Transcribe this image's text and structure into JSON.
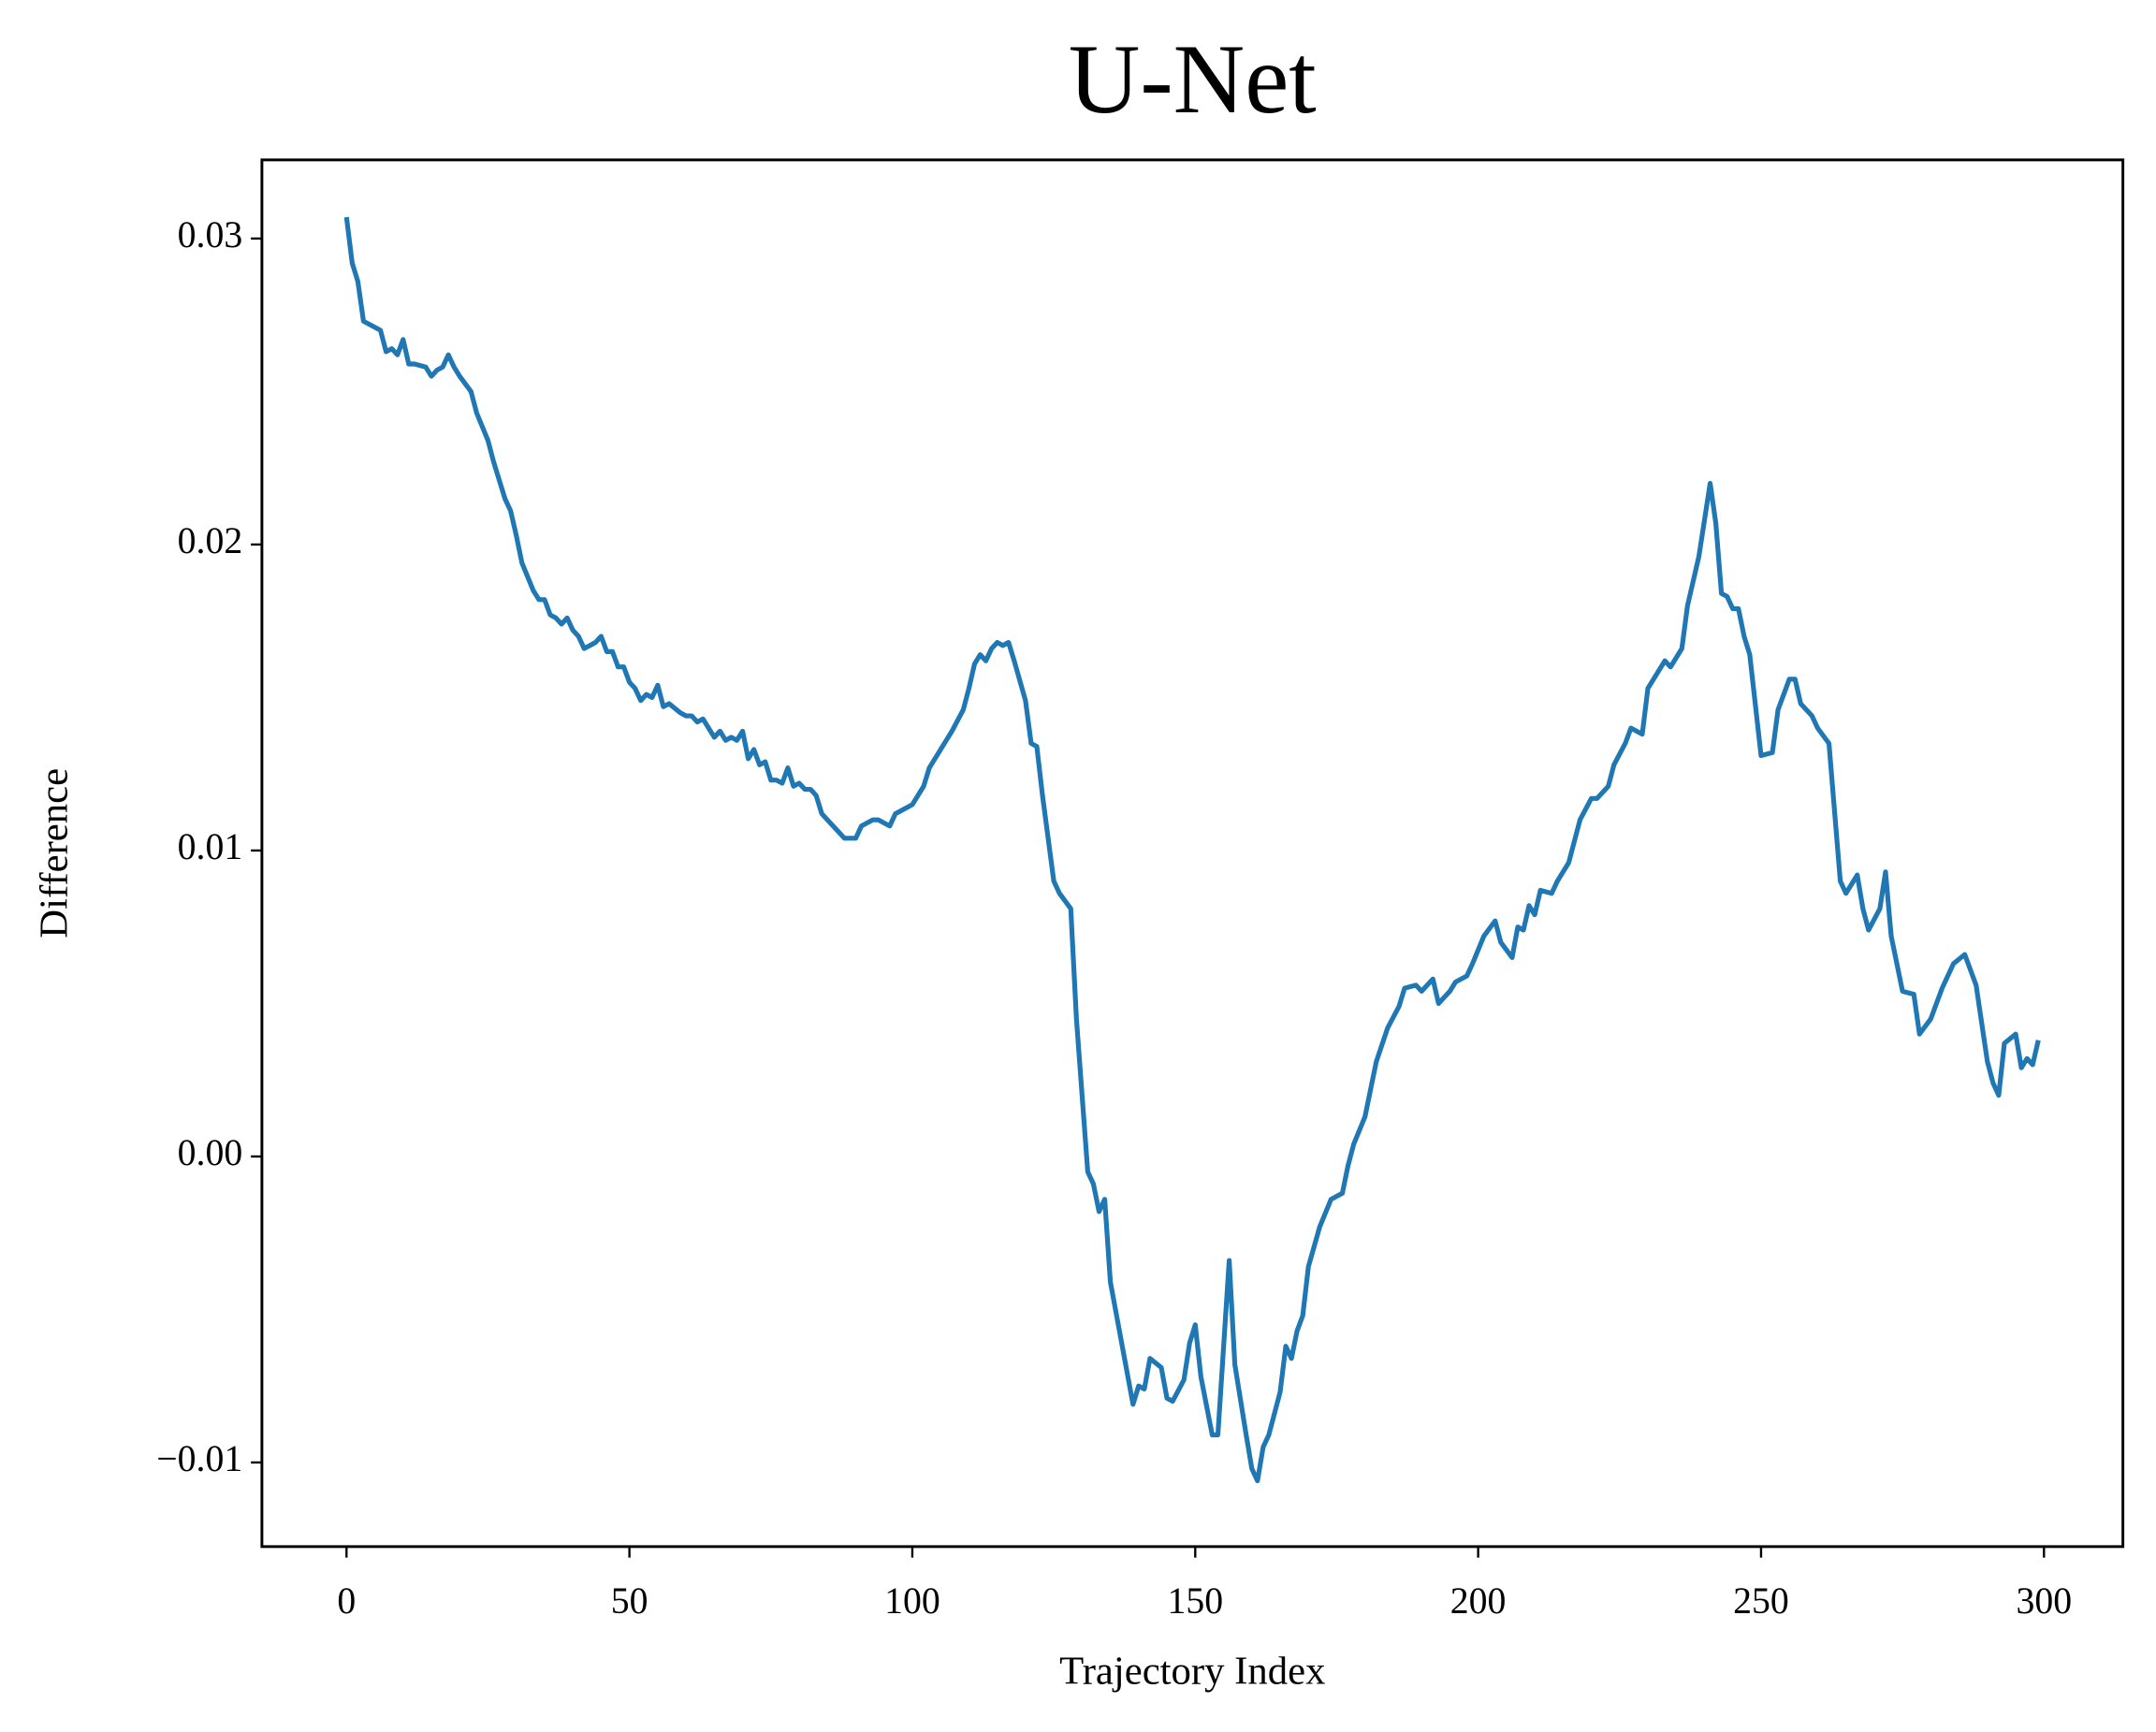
{
  "chart_data": {
    "type": "line",
    "title": "U-Net",
    "x_label": "Trajectory Index",
    "y_label": "Difference",
    "x": [
      0,
      1,
      2,
      3,
      4,
      6,
      7,
      8,
      9,
      10,
      11,
      12,
      14,
      15,
      16,
      17,
      18,
      19,
      20,
      22,
      23,
      25,
      26,
      28,
      29,
      30,
      31,
      33,
      34,
      35,
      36,
      37,
      38,
      39,
      40,
      41,
      42,
      44,
      45,
      46,
      47,
      48,
      49,
      50,
      51,
      52,
      53,
      54,
      55,
      56,
      57,
      59,
      60,
      61,
      62,
      63,
      64,
      65,
      66,
      67,
      68,
      69,
      70,
      71,
      72,
      73,
      74,
      75,
      76,
      77,
      78,
      79,
      80,
      81,
      82,
      83,
      84,
      85,
      86,
      87,
      88,
      90,
      91,
      93,
      94,
      96,
      97,
      98,
      100,
      101,
      102,
      103,
      104,
      105,
      106,
      107,
      109,
      110,
      111,
      112,
      113,
      114,
      115,
      116,
      117,
      118,
      120,
      121,
      122,
      123,
      125,
      126,
      128,
      129,
      131,
      132,
      133,
      134,
      135,
      137,
      139,
      140,
      141,
      142,
      144,
      145,
      146,
      148,
      149,
      150,
      151,
      153,
      154,
      156,
      157,
      159,
      160,
      161,
      162,
      163,
      165,
      166,
      167,
      168,
      169,
      170,
      172,
      174,
      176,
      177,
      178,
      180,
      181,
      182,
      184,
      186,
      187,
      189,
      190,
      192,
      193,
      195,
      196,
      198,
      199,
      201,
      203,
      204,
      206,
      207,
      208,
      209,
      210,
      211,
      213,
      214,
      216,
      218,
      220,
      221,
      223,
      224,
      226,
      227,
      229,
      230,
      232,
      233,
      234,
      236,
      237,
      239,
      240,
      241,
      242,
      243,
      244,
      245,
      246,
      247,
      248,
      250,
      252,
      253,
      255,
      256,
      257,
      259,
      260,
      262,
      264,
      265,
      267,
      268,
      269,
      271,
      272,
      273,
      275,
      277,
      278,
      280,
      282,
      284,
      286,
      288,
      290,
      291,
      292,
      293,
      295,
      296,
      297,
      298,
      299
    ],
    "series": [
      {
        "name": "U-Net",
        "color": "#1f77b4",
        "values": [
          0.0307,
          0.0292,
          0.0286,
          0.0273,
          0.0272,
          0.027,
          0.0263,
          0.0264,
          0.0262,
          0.0267,
          0.0259,
          0.0259,
          0.0258,
          0.0255,
          0.0257,
          0.0258,
          0.0262,
          0.0258,
          0.0255,
          0.025,
          0.0243,
          0.0234,
          0.0227,
          0.0215,
          0.0211,
          0.0203,
          0.0194,
          0.0185,
          0.0182,
          0.0182,
          0.0177,
          0.0176,
          0.0174,
          0.0176,
          0.0172,
          0.017,
          0.0166,
          0.0168,
          0.017,
          0.0165,
          0.0165,
          0.016,
          0.016,
          0.0155,
          0.0153,
          0.0149,
          0.0151,
          0.015,
          0.0154,
          0.0147,
          0.0148,
          0.0145,
          0.0144,
          0.0144,
          0.0142,
          0.0143,
          0.014,
          0.0137,
          0.0139,
          0.0136,
          0.0137,
          0.0136,
          0.0139,
          0.013,
          0.0133,
          0.0128,
          0.0129,
          0.0123,
          0.0123,
          0.0122,
          0.0127,
          0.0121,
          0.0122,
          0.012,
          0.012,
          0.0118,
          0.0112,
          0.011,
          0.0108,
          0.0106,
          0.0104,
          0.0104,
          0.0108,
          0.011,
          0.011,
          0.0108,
          0.0112,
          0.0113,
          0.0115,
          0.0118,
          0.0121,
          0.0127,
          0.013,
          0.0133,
          0.0136,
          0.0139,
          0.0146,
          0.0153,
          0.0161,
          0.0164,
          0.0162,
          0.0166,
          0.0168,
          0.0167,
          0.0168,
          0.0162,
          0.0149,
          0.0135,
          0.0134,
          0.0118,
          0.009,
          0.0086,
          0.0081,
          0.0045,
          -0.0005,
          -0.0009,
          -0.0018,
          -0.0014,
          -0.0041,
          -0.0061,
          -0.0081,
          -0.0075,
          -0.0076,
          -0.0066,
          -0.0069,
          -0.0079,
          -0.008,
          -0.0073,
          -0.0061,
          -0.0055,
          -0.0072,
          -0.0091,
          -0.0091,
          -0.0034,
          -0.0068,
          -0.0091,
          -0.0102,
          -0.0106,
          -0.0095,
          -0.0091,
          -0.0077,
          -0.0062,
          -0.0066,
          -0.0057,
          -0.0052,
          -0.0036,
          -0.0023,
          -0.0014,
          -0.0012,
          -0.0003,
          0.0004,
          0.0013,
          0.0022,
          0.0031,
          0.0042,
          0.0049,
          0.0055,
          0.0056,
          0.0054,
          0.0058,
          0.005,
          0.0054,
          0.0057,
          0.0059,
          0.0063,
          0.0072,
          0.0077,
          0.007,
          0.0065,
          0.0075,
          0.0074,
          0.0082,
          0.0079,
          0.0087,
          0.0086,
          0.009,
          0.0096,
          0.011,
          0.0117,
          0.0117,
          0.0121,
          0.0128,
          0.0135,
          0.014,
          0.0138,
          0.0153,
          0.0159,
          0.0162,
          0.016,
          0.0166,
          0.018,
          0.0196,
          0.0208,
          0.022,
          0.0207,
          0.0184,
          0.0183,
          0.0179,
          0.0179,
          0.017,
          0.0164,
          0.0131,
          0.0132,
          0.0146,
          0.0156,
          0.0156,
          0.0148,
          0.0144,
          0.014,
          0.0135,
          0.009,
          0.0086,
          0.0092,
          0.0081,
          0.0074,
          0.0081,
          0.0093,
          0.0072,
          0.0054,
          0.0053,
          0.004,
          0.0045,
          0.0055,
          0.0063,
          0.0066,
          0.0056,
          0.0031,
          0.0024,
          0.002,
          0.0037,
          0.004,
          0.0029,
          0.0032,
          0.003,
          0.0038
        ]
      }
    ],
    "xlim": [
      -14.95,
      313.95
    ],
    "ylim": [
      -0.01275,
      0.03257
    ],
    "xticks": [
      0,
      50,
      100,
      150,
      200,
      250,
      300
    ],
    "yticks": [
      {
        "value": -0.01,
        "label": "−0.01"
      },
      {
        "value": 0,
        "label": "0.00"
      },
      0.01,
      0.02,
      0.03
    ],
    "grid": false
  }
}
